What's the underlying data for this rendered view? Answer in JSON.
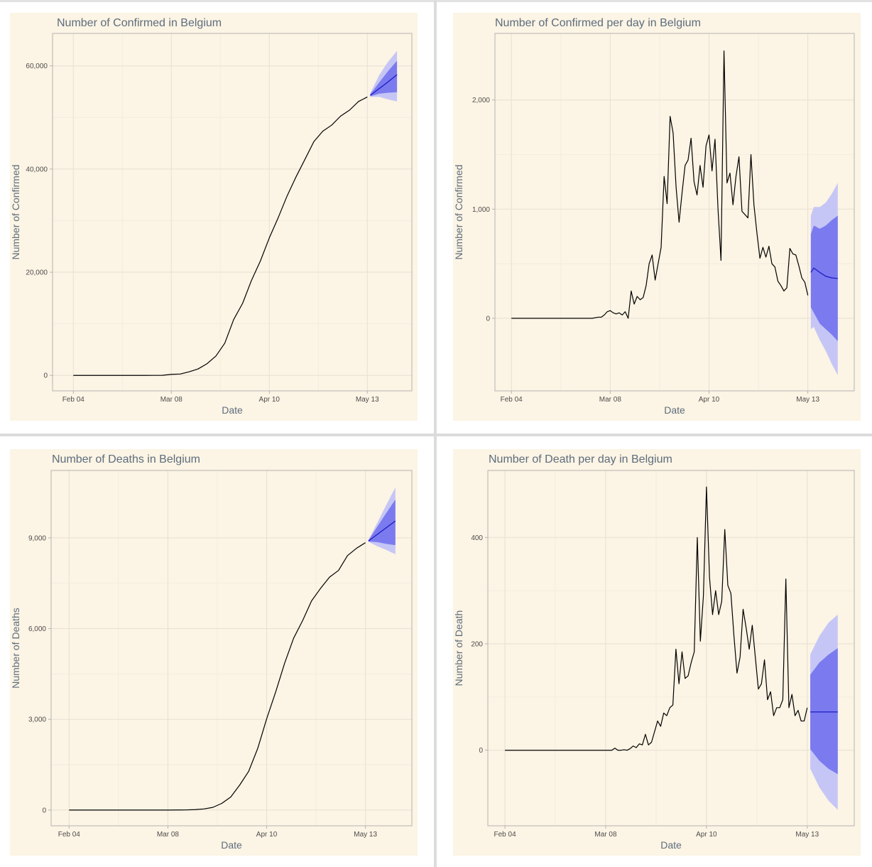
{
  "chart_data": [
    {
      "type": "line",
      "title": "Number of Confirmed in Belgium",
      "x_label": "Date",
      "y_label": "Number of Confirmed",
      "background": "#fcf4e4",
      "grid": true,
      "x": [
        0,
        3,
        6,
        9,
        12,
        15,
        18,
        21,
        24,
        27,
        30,
        33,
        36,
        39,
        42,
        45,
        48,
        51,
        54,
        57,
        60,
        63,
        66,
        69,
        72,
        75,
        78,
        81,
        84,
        87,
        90,
        93,
        96,
        99
      ],
      "series": [
        {
          "color": "#000000",
          "values": [
            1,
            1,
            1,
            1,
            1,
            1,
            1,
            1,
            1,
            2,
            13,
            200,
            267,
            689,
            1243,
            2257,
            3743,
            6235,
            10836,
            13964,
            18431,
            22194,
            26667,
            30589,
            34809,
            38496,
            41889,
            45325,
            47334,
            48519,
            50267,
            51420,
            53081,
            53981
          ]
        }
      ],
      "forecast": {
        "x": [
          100,
          103,
          106,
          109
        ],
        "mean": [
          54300,
          55600,
          56900,
          58300
        ],
        "lo80": [
          54100,
          54600,
          54800,
          54900
        ],
        "hi80": [
          54500,
          56800,
          59000,
          61000
        ],
        "lo95": [
          54000,
          54000,
          53500,
          53100
        ],
        "hi95": [
          54700,
          58200,
          60800,
          62900
        ],
        "color": "#2323c8",
        "color80": "#7b7bef",
        "color95": "#c6c6f6"
      },
      "xlim": [
        -7,
        114
      ],
      "ylim": [
        -3000,
        66300
      ],
      "xticks": [
        {
          "value": 0,
          "label": "Feb 04"
        },
        {
          "value": 33,
          "label": "Mar 08"
        },
        {
          "value": 66,
          "label": "Apr 10"
        },
        {
          "value": 99,
          "label": "May 13"
        }
      ],
      "yticks": [
        0,
        {
          "value": 20000,
          "label": "20,000"
        },
        {
          "value": 40000,
          "label": "40,000"
        },
        {
          "value": 60000,
          "label": "60,000"
        }
      ]
    },
    {
      "type": "line",
      "title": "Number of Confirmed per day in Belgium",
      "x_label": "Date",
      "y_label": "Number of Confirmed",
      "background": "#fcf4e4",
      "grid": true,
      "x": [
        0,
        1,
        2,
        3,
        4,
        5,
        6,
        7,
        8,
        9,
        10,
        11,
        12,
        13,
        14,
        15,
        16,
        17,
        18,
        19,
        20,
        21,
        22,
        23,
        24,
        25,
        26,
        27,
        28,
        29,
        30,
        31,
        32,
        33,
        34,
        35,
        36,
        37,
        38,
        39,
        40,
        41,
        42,
        43,
        44,
        45,
        46,
        47,
        48,
        49,
        50,
        51,
        52,
        53,
        54,
        55,
        56,
        57,
        58,
        59,
        60,
        61,
        62,
        63,
        64,
        65,
        66,
        67,
        68,
        69,
        70,
        71,
        72,
        73,
        74,
        75,
        76,
        77,
        78,
        79,
        80,
        81,
        82,
        83,
        84,
        85,
        86,
        87,
        88,
        89,
        90,
        91,
        92,
        93,
        94,
        95,
        96,
        97,
        98,
        99
      ],
      "series": [
        {
          "color": "#000000",
          "values": [
            0,
            0,
            0,
            0,
            0,
            0,
            0,
            0,
            0,
            0,
            0,
            0,
            0,
            0,
            0,
            0,
            0,
            0,
            0,
            0,
            0,
            0,
            0,
            0,
            0,
            0,
            0,
            0,
            5,
            10,
            10,
            30,
            60,
            70,
            50,
            40,
            50,
            30,
            60,
            0,
            250,
            130,
            200,
            170,
            190,
            300,
            500,
            580,
            350,
            500,
            650,
            1300,
            1050,
            1850,
            1700,
            1200,
            880,
            1150,
            1400,
            1450,
            1650,
            1250,
            1130,
            1400,
            1200,
            1580,
            1680,
            1350,
            1640,
            1000,
            530,
            2450,
            1240,
            1330,
            1040,
            1300,
            1480,
            980,
            950,
            920,
            1500,
            1040,
            780,
            550,
            650,
            560,
            660,
            500,
            470,
            340,
            300,
            250,
            280,
            640,
            590,
            580,
            480,
            370,
            330,
            210
          ]
        }
      ],
      "forecast": {
        "x": [
          100,
          101,
          103,
          105,
          107,
          109
        ],
        "mean": [
          420,
          460,
          420,
          385,
          370,
          365
        ],
        "lo80": [
          100,
          50,
          -50,
          -100,
          -150,
          -210
        ],
        "hi80": [
          770,
          850,
          820,
          850,
          900,
          940
        ],
        "lo95": [
          -100,
          -80,
          -200,
          -300,
          -420,
          -520
        ],
        "hi95": [
          940,
          1020,
          1020,
          1060,
          1140,
          1240
        ],
        "color": "#2323c8",
        "color80": "#7b7bef",
        "color95": "#c6c6f6"
      },
      "xlim": [
        -5.5,
        114.5
      ],
      "ylim": [
        -665,
        2610
      ],
      "xticks": [
        {
          "value": 0,
          "label": "Feb 04"
        },
        {
          "value": 33,
          "label": "Mar 08"
        },
        {
          "value": 66,
          "label": "Apr 10"
        },
        {
          "value": 99,
          "label": "May 13"
        }
      ],
      "yticks": [
        0,
        {
          "value": 1000,
          "label": "1,000"
        },
        {
          "value": 2000,
          "label": "2,000"
        }
      ]
    },
    {
      "type": "line",
      "title": "Number of Deaths in Belgium",
      "x_label": "Date",
      "y_label": "Number of Deaths",
      "background": "#fcf4e4",
      "grid": true,
      "x": [
        0,
        3,
        6,
        9,
        12,
        15,
        18,
        21,
        24,
        27,
        30,
        33,
        36,
        39,
        42,
        45,
        48,
        51,
        54,
        57,
        60,
        63,
        66,
        69,
        72,
        75,
        78,
        81,
        84,
        87,
        90,
        93,
        96,
        99
      ],
      "series": [
        {
          "color": "#000000",
          "values": [
            0,
            0,
            0,
            0,
            0,
            0,
            0,
            0,
            0,
            0,
            0,
            0,
            3,
            4,
            14,
            37,
            88,
            220,
            431,
            828,
            1283,
            2035,
            3019,
            3903,
            4857,
            5683,
            6262,
            6917,
            7331,
            7703,
            7924,
            8415,
            8656,
            8843
          ]
        }
      ],
      "forecast": {
        "x": [
          100,
          103,
          106,
          109
        ],
        "mean": [
          8900,
          9120,
          9340,
          9560
        ],
        "lo80": [
          8880,
          8860,
          8800,
          8760
        ],
        "hi80": [
          8920,
          9380,
          9830,
          10270
        ],
        "lo95": [
          8870,
          8720,
          8600,
          8460
        ],
        "hi95": [
          8930,
          9510,
          10100,
          10670
        ],
        "color": "#2323c8",
        "color80": "#7b7bef",
        "color95": "#c6c6f6"
      },
      "xlim": [
        -6,
        114.5
      ],
      "ylim": [
        -520,
        11230
      ],
      "xticks": [
        {
          "value": 0,
          "label": "Feb 04"
        },
        {
          "value": 33,
          "label": "Mar 08"
        },
        {
          "value": 66,
          "label": "Apr 10"
        },
        {
          "value": 99,
          "label": "May 13"
        }
      ],
      "yticks": [
        0,
        {
          "value": 3000,
          "label": "3,000"
        },
        {
          "value": 6000,
          "label": "6,000"
        },
        {
          "value": 9000,
          "label": "9,000"
        }
      ]
    },
    {
      "type": "line",
      "title": "Number of Death per day in Belgium",
      "x_label": "Date",
      "y_label": "Number of Death",
      "background": "#fcf4e4",
      "grid": true,
      "x": [
        0,
        1,
        2,
        3,
        4,
        5,
        6,
        7,
        8,
        9,
        10,
        11,
        12,
        13,
        14,
        15,
        16,
        17,
        18,
        19,
        20,
        21,
        22,
        23,
        24,
        25,
        26,
        27,
        28,
        29,
        30,
        31,
        32,
        33,
        34,
        35,
        36,
        37,
        38,
        39,
        40,
        41,
        42,
        43,
        44,
        45,
        46,
        47,
        48,
        49,
        50,
        51,
        52,
        53,
        54,
        55,
        56,
        57,
        58,
        59,
        60,
        61,
        62,
        63,
        64,
        65,
        66,
        67,
        68,
        69,
        70,
        71,
        72,
        73,
        74,
        75,
        76,
        77,
        78,
        79,
        80,
        81,
        82,
        83,
        84,
        85,
        86,
        87,
        88,
        89,
        90,
        91,
        92,
        93,
        94,
        95,
        96,
        97,
        98,
        99
      ],
      "series": [
        {
          "color": "#000000",
          "values": [
            0,
            0,
            0,
            0,
            0,
            0,
            0,
            0,
            0,
            0,
            0,
            0,
            0,
            0,
            0,
            0,
            0,
            0,
            0,
            0,
            0,
            0,
            0,
            0,
            0,
            0,
            0,
            0,
            0,
            0,
            0,
            0,
            0,
            0,
            0,
            0,
            4,
            0,
            0,
            1,
            0,
            3,
            8,
            5,
            12,
            10,
            30,
            10,
            15,
            35,
            55,
            45,
            70,
            65,
            80,
            85,
            190,
            125,
            185,
            135,
            140,
            165,
            185,
            400,
            205,
            290,
            495,
            325,
            255,
            300,
            255,
            280,
            415,
            310,
            295,
            215,
            145,
            175,
            265,
            230,
            190,
            235,
            175,
            115,
            125,
            170,
            95,
            110,
            65,
            80,
            80,
            95,
            322,
            80,
            105,
            65,
            75,
            55,
            55,
            80
          ]
        }
      ],
      "forecast": {
        "x": [
          100,
          103,
          106,
          109
        ],
        "mean": [
          72,
          72,
          72,
          72
        ],
        "lo80": [
          2,
          -20,
          -35,
          -45
        ],
        "hi80": [
          142,
          165,
          180,
          192
        ],
        "lo95": [
          -35,
          -70,
          -95,
          -112
        ],
        "hi95": [
          180,
          215,
          240,
          255
        ],
        "color": "#2323c8",
        "color80": "#7b7bef",
        "color95": "#c6c6f6"
      },
      "xlim": [
        -5.6,
        114.4
      ],
      "ylim": [
        -142,
        526
      ],
      "xticks": [
        {
          "value": 0,
          "label": "Feb 04"
        },
        {
          "value": 33,
          "label": "Mar 08"
        },
        {
          "value": 66,
          "label": "Apr 10"
        },
        {
          "value": 99,
          "label": "May 13"
        }
      ],
      "yticks": [
        0,
        200,
        400
      ]
    }
  ]
}
